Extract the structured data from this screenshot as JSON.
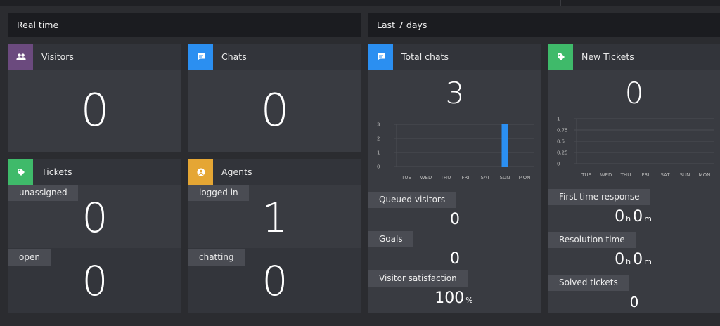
{
  "colors": {
    "visitors": "#6b4a7e",
    "chats": "#2b8ff1",
    "tickets": "#3fba6a",
    "agents": "#e5a634",
    "bar": "#2b8ff1"
  },
  "realtime": {
    "title": "Real time",
    "visitors": {
      "label": "Visitors",
      "icon": "users-icon",
      "value": "0"
    },
    "chats": {
      "label": "Chats",
      "icon": "chat-bubble-icon",
      "value": "0"
    },
    "tickets": {
      "label": "Tickets",
      "icon": "tag-icon",
      "unassigned_label": "unassigned",
      "unassigned_value": "0",
      "open_label": "open",
      "open_value": "0"
    },
    "agents": {
      "label": "Agents",
      "icon": "user-circle-icon",
      "logged_in_label": "logged in",
      "logged_in_value": "1",
      "chatting_label": "chatting",
      "chatting_value": "0"
    }
  },
  "last7": {
    "title": "Last 7 days",
    "total_chats": {
      "label": "Total chats",
      "icon": "chat-bubble-icon",
      "value": "3",
      "queued_label": "Queued visitors",
      "queued_value": "0",
      "goals_label": "Goals",
      "goals_value": "0",
      "satisfaction_label": "Visitor satisfaction",
      "satisfaction_value": "100",
      "satisfaction_unit": "%"
    },
    "new_tickets": {
      "label": "New Tickets",
      "icon": "tag-icon",
      "value": "0",
      "first_response_label": "First time response",
      "first_response_h": "0",
      "first_response_m": "0",
      "resolution_label": "Resolution time",
      "resolution_h": "0",
      "resolution_m": "0",
      "solved_label": "Solved tickets",
      "solved_value": "0",
      "unit_h": "h",
      "unit_m": "m"
    }
  },
  "chart_data": [
    {
      "type": "bar",
      "categories": [
        "TUE",
        "WED",
        "THU",
        "FRI",
        "SAT",
        "SUN",
        "MON"
      ],
      "values": [
        0,
        0,
        0,
        0,
        0,
        3,
        0
      ],
      "yticks": [
        "3",
        "2",
        "1",
        "0"
      ],
      "ylim": [
        0,
        3
      ]
    },
    {
      "type": "bar",
      "categories": [
        "TUE",
        "WED",
        "THU",
        "FRI",
        "SAT",
        "SUN",
        "MON"
      ],
      "values": [
        0,
        0,
        0,
        0,
        0,
        0,
        0
      ],
      "yticks": [
        "1",
        "0.75",
        "0.5",
        "0.25",
        "0"
      ],
      "ylim": [
        0,
        1
      ]
    }
  ]
}
